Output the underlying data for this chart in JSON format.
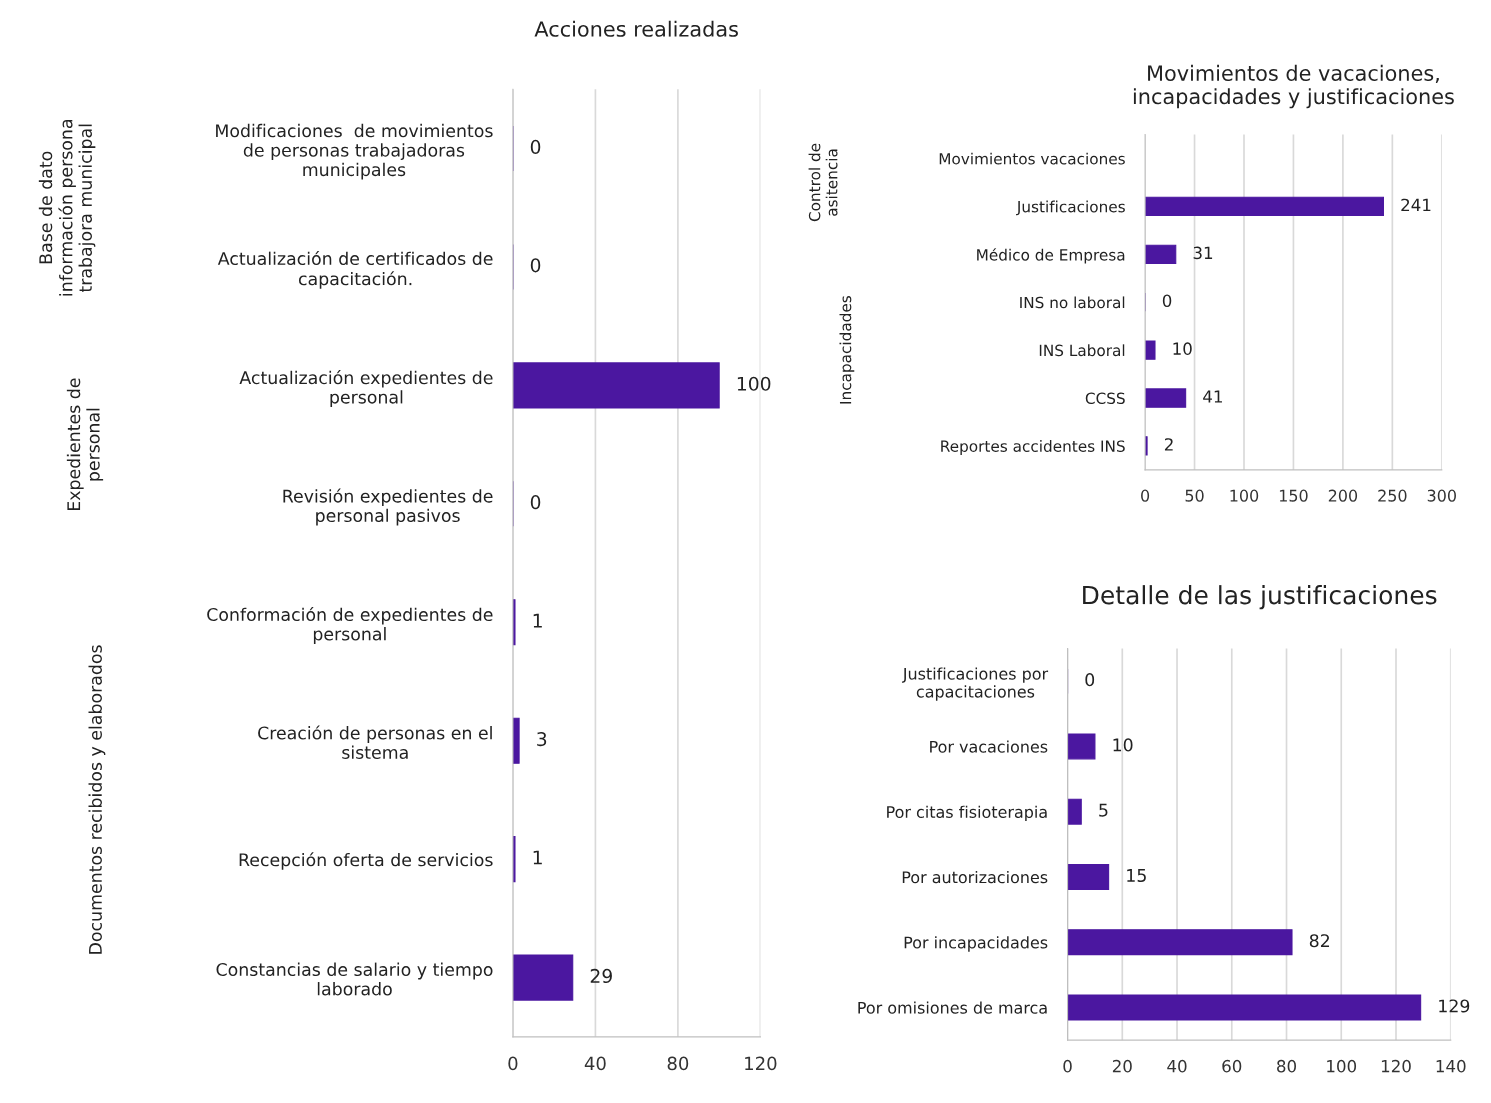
{
  "chart_data": [
    {
      "type": "bar",
      "orientation": "horizontal",
      "title": "Acciones realizadas",
      "categories": [
        "Modificaciones  de movimientos\nde personas trabajadoras\nmunicipales",
        "Actualización de certificados de\ncapacitación.",
        "Actualización expedientes de\npersonal",
        "Revisión expedientes de\npersonal pasivos",
        "Conformación de expedientes de\npersonal",
        "Creación de personas en el\nsistema",
        "Recepción oferta de servicios",
        "Constancias de salario y tiempo\nlaborado"
      ],
      "values": [
        0,
        0,
        100,
        0,
        1,
        3,
        1,
        29
      ],
      "color": "#4b17a0",
      "xlim": [
        0,
        120
      ],
      "xticks": [
        0,
        40,
        80,
        120
      ],
      "grid": "x",
      "data_labels": true,
      "annotations": [
        "Base de dato\ninformación persona\ntrabajora municipal",
        "Expedientes de\npersonal",
        "Documentos recibidos y elaborados"
      ]
    },
    {
      "type": "bar",
      "orientation": "horizontal",
      "title": "Movimientos de vacaciones,\nincapacidades y justificaciones",
      "categories": [
        "Movimientos vacaciones",
        "Justificaciones",
        "Médico de Empresa",
        "INS no laboral",
        "INS Laboral",
        "CCSS",
        "Reportes accidentes INS"
      ],
      "values": [
        null,
        241,
        31,
        0,
        10,
        41,
        2
      ],
      "color": "#4b17a0",
      "xlim": [
        0,
        300
      ],
      "xticks": [
        0,
        50,
        100,
        150,
        200,
        250,
        300
      ],
      "grid": "x",
      "data_labels": true,
      "annotations": [
        "Control de\nasitencia",
        "Incapacidades"
      ]
    },
    {
      "type": "bar",
      "orientation": "horizontal",
      "title": "Detalle de las justificaciones",
      "categories": [
        "Justificaciones por\ncapacitaciones",
        "Por vacaciones",
        "Por citas fisioterapia",
        "Por autorizaciones",
        "Por incapacidades",
        "Por omisiones de marca"
      ],
      "values": [
        0,
        10,
        5,
        15,
        82,
        129
      ],
      "color": "#4b17a0",
      "xlim": [
        0,
        140
      ],
      "xticks": [
        0,
        20,
        40,
        60,
        80,
        100,
        120,
        140
      ],
      "grid": "x",
      "data_labels": true
    }
  ]
}
